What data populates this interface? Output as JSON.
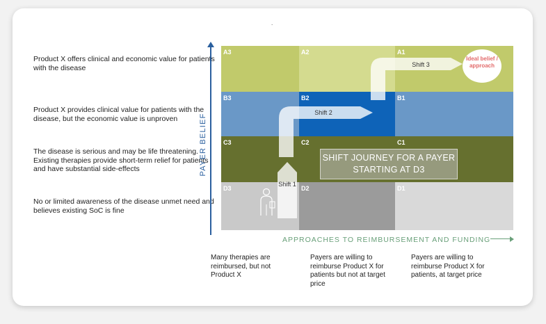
{
  "tick": ".",
  "beliefs": [
    {
      "text": "Product X offers clinical and economic value for patients with the disease"
    },
    {
      "text": "Product X  provides clinical value for patients with the disease,  but the economic value is unproven"
    },
    {
      "text": "The disease is serious and may be  life threatening. Existing therapies provide short-term relief for patients and have substantial side-effects"
    },
    {
      "text": "No or limited awareness of the  disease unmet need and believes existing SoC is fine"
    }
  ],
  "y_axis_label": "PAYER BELIEF",
  "x_axis_label": "APPROACHES TO REIMBURSEMENT AND FUNDING",
  "grid": {
    "rows": [
      "A",
      "B",
      "C",
      "D"
    ],
    "cols": [
      "3",
      "2",
      "1"
    ],
    "cells": [
      {
        "label": "A3",
        "color": "#c1ca6b"
      },
      {
        "label": "A2",
        "color": "#d4db8f"
      },
      {
        "label": "A1",
        "color": "#c1ca6b"
      },
      {
        "label": "B3",
        "color": "#6a98c7"
      },
      {
        "label": "B2",
        "color": "#0e63b8"
      },
      {
        "label": "B1",
        "color": "#6a98c7"
      },
      {
        "label": "C3",
        "color": "#66702f"
      },
      {
        "label": "C2",
        "color": "#66702f"
      },
      {
        "label": "C1",
        "color": "#66702f"
      },
      {
        "label": "D3",
        "color": "#c9c9c9"
      },
      {
        "label": "D2",
        "color": "#9b9b9b"
      },
      {
        "label": "D1",
        "color": "#d9d9d9"
      }
    ]
  },
  "shifts": {
    "shift1": "Shift 1",
    "shift2": "Shift 2",
    "shift3": "Shift 3"
  },
  "journey_text": "SHIFT JOURNEY FOR A PAYER STARTING AT D3",
  "ideal_text": "Ideal belief / approach",
  "approaches": [
    {
      "text": "Many therapies are reimbursed, but not Product X"
    },
    {
      "text": "Payers are willing to reimburse Product X for patients but not at target price"
    },
    {
      "text": "Payers are willing to reimburse Product X  for patients, at target price"
    }
  ]
}
